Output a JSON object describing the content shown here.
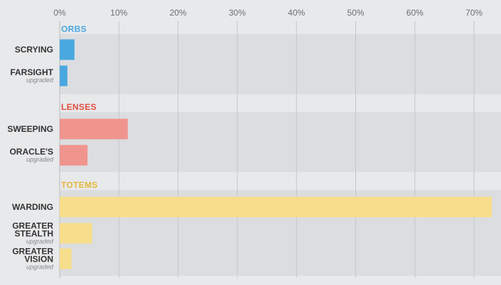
{
  "chart_data": {
    "type": "bar",
    "orientation": "horizontal",
    "x_ticks": [
      "0%",
      "10%",
      "20%",
      "30%",
      "40%",
      "50%",
      "60%",
      "70%"
    ],
    "xlim": [
      0,
      75
    ],
    "grid": true,
    "groups": [
      {
        "name": "ORBS",
        "color": "#4aa8e0",
        "items": [
          {
            "label": [
              "SCRYING"
            ],
            "sub": "",
            "value": 2.5
          },
          {
            "label": [
              "FARSIGHT"
            ],
            "sub": "upgraded",
            "value": 1.3
          }
        ]
      },
      {
        "name": "LENSES",
        "color": "#f0948e",
        "label_color": "#e04d3f",
        "items": [
          {
            "label": [
              "SWEEPING"
            ],
            "sub": "",
            "value": 11.5
          },
          {
            "label": [
              "ORACLE'S"
            ],
            "sub": "upgraded",
            "value": 4.7
          }
        ]
      },
      {
        "name": "TOTEMS",
        "color": "#f7de8c",
        "label_color": "#e3b83a",
        "items": [
          {
            "label": [
              "WARDING"
            ],
            "sub": "",
            "value": 73.0
          },
          {
            "label": [
              "GREATER",
              "STEALTH"
            ],
            "sub": "upgraded",
            "value": 5.5
          },
          {
            "label": [
              "GREATER",
              "VISION"
            ],
            "sub": "upgraded",
            "value": 2.0
          }
        ]
      }
    ]
  }
}
